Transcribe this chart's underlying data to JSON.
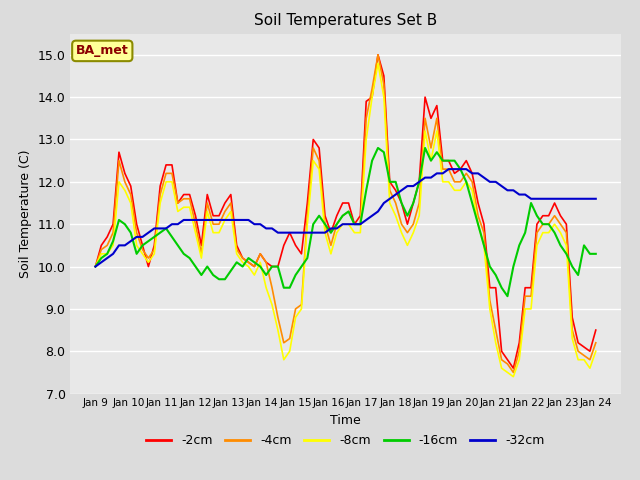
{
  "title": "Soil Temperatures Set B",
  "xlabel": "Time",
  "ylabel": "Soil Temperature (C)",
  "ylim": [
    7.0,
    15.5
  ],
  "yticks": [
    7.0,
    8.0,
    9.0,
    10.0,
    11.0,
    12.0,
    13.0,
    14.0,
    15.0
  ],
  "xtick_labels": [
    "Jan 9",
    "Jan 10",
    "Jan 11",
    "Jan 12",
    "Jan 13",
    "Jan 14",
    "Jan 15",
    "Jan 16",
    "Jan 17",
    "Jan 18",
    "Jan 19",
    "Jan 20",
    "Jan 21",
    "Jan 22",
    "Jan 23",
    "Jan 24"
  ],
  "annotation_text": "BA_met",
  "annotation_color": "#8B0000",
  "annotation_bg": "#FFFF99",
  "fig_bg_color": "#DCDCDC",
  "plot_bg_color": "#E8E8E8",
  "series": {
    "m2cm": {
      "label": "-2cm",
      "color": "#FF0000",
      "linewidth": 1.2,
      "values": [
        10.0,
        10.5,
        10.7,
        11.0,
        12.7,
        12.2,
        11.9,
        11.0,
        10.5,
        10.0,
        10.5,
        11.9,
        12.4,
        12.4,
        11.5,
        11.7,
        11.7,
        11.2,
        10.5,
        11.7,
        11.2,
        11.2,
        11.5,
        11.7,
        10.5,
        10.2,
        10.1,
        10.0,
        10.3,
        10.1,
        10.0,
        10.0,
        10.5,
        10.8,
        10.5,
        10.3,
        11.5,
        13.0,
        12.8,
        11.2,
        10.8,
        11.2,
        11.5,
        11.5,
        11.0,
        11.2,
        13.9,
        14.0,
        15.0,
        14.5,
        12.0,
        11.8,
        11.5,
        11.0,
        11.5,
        12.0,
        14.0,
        13.5,
        13.8,
        12.5,
        12.5,
        12.2,
        12.3,
        12.5,
        12.2,
        11.5,
        11.0,
        9.5,
        9.5,
        8.0,
        7.8,
        7.6,
        8.2,
        9.5,
        9.5,
        11.0,
        11.2,
        11.2,
        11.5,
        11.2,
        11.0,
        8.8,
        8.2,
        8.1,
        8.0,
        8.5
      ]
    },
    "m4cm": {
      "label": "-4cm",
      "color": "#FF8C00",
      "linewidth": 1.2,
      "values": [
        10.0,
        10.4,
        10.5,
        10.8,
        12.5,
        12.0,
        11.7,
        10.8,
        10.4,
        10.2,
        10.4,
        11.7,
        12.2,
        12.2,
        11.5,
        11.6,
        11.6,
        11.0,
        10.3,
        11.5,
        11.0,
        11.0,
        11.3,
        11.5,
        10.4,
        10.2,
        10.1,
        10.0,
        10.3,
        10.1,
        9.5,
        8.8,
        8.2,
        8.3,
        9.0,
        9.1,
        11.2,
        12.8,
        12.5,
        11.0,
        10.5,
        11.0,
        11.2,
        11.3,
        11.0,
        11.0,
        13.5,
        14.2,
        15.0,
        14.3,
        11.8,
        11.5,
        11.0,
        10.8,
        11.0,
        11.5,
        13.5,
        12.8,
        13.5,
        12.3,
        12.3,
        12.0,
        12.0,
        12.2,
        12.0,
        11.2,
        10.8,
        9.2,
        8.5,
        7.8,
        7.7,
        7.5,
        8.0,
        9.3,
        9.3,
        10.8,
        11.0,
        11.0,
        11.2,
        11.0,
        10.8,
        8.5,
        8.0,
        7.9,
        7.8,
        8.2
      ]
    },
    "m8cm": {
      "label": "-8cm",
      "color": "#FFFF00",
      "linewidth": 1.2,
      "values": [
        10.0,
        10.3,
        10.3,
        10.5,
        12.0,
        11.8,
        11.5,
        10.5,
        10.3,
        10.1,
        10.3,
        11.5,
        12.0,
        12.0,
        11.3,
        11.4,
        11.4,
        10.8,
        10.2,
        11.3,
        10.8,
        10.8,
        11.1,
        11.3,
        10.3,
        10.1,
        10.0,
        9.8,
        10.1,
        9.5,
        9.1,
        8.5,
        7.8,
        8.0,
        8.8,
        9.0,
        11.0,
        12.5,
        12.3,
        10.8,
        10.3,
        10.8,
        11.0,
        11.0,
        10.8,
        10.8,
        13.0,
        14.0,
        14.8,
        14.0,
        11.5,
        11.2,
        10.8,
        10.5,
        10.8,
        11.2,
        13.2,
        12.5,
        13.2,
        12.0,
        12.0,
        11.8,
        11.8,
        12.0,
        11.8,
        11.0,
        10.5,
        9.0,
        8.2,
        7.6,
        7.5,
        7.4,
        7.8,
        9.0,
        9.0,
        10.5,
        10.8,
        10.8,
        11.0,
        10.8,
        10.5,
        8.3,
        7.8,
        7.8,
        7.6,
        8.0
      ]
    },
    "m16cm": {
      "label": "-16cm",
      "color": "#00CC00",
      "linewidth": 1.5,
      "values": [
        10.0,
        10.2,
        10.3,
        10.6,
        11.1,
        11.0,
        10.8,
        10.3,
        10.5,
        10.6,
        10.7,
        10.8,
        10.9,
        10.7,
        10.5,
        10.3,
        10.2,
        10.0,
        9.8,
        10.0,
        9.8,
        9.7,
        9.7,
        9.9,
        10.1,
        10.0,
        10.2,
        10.1,
        10.0,
        9.8,
        10.0,
        10.0,
        9.5,
        9.5,
        9.8,
        10.0,
        10.2,
        11.0,
        11.2,
        11.0,
        10.8,
        11.0,
        11.2,
        11.3,
        11.0,
        11.0,
        11.8,
        12.5,
        12.8,
        12.7,
        12.0,
        12.0,
        11.5,
        11.2,
        11.5,
        12.0,
        12.8,
        12.5,
        12.7,
        12.5,
        12.5,
        12.5,
        12.3,
        12.0,
        11.5,
        11.0,
        10.5,
        10.0,
        9.8,
        9.5,
        9.3,
        10.0,
        10.5,
        10.8,
        11.5,
        11.2,
        11.0,
        11.0,
        10.8,
        10.5,
        10.3,
        10.0,
        9.8,
        10.5,
        10.3,
        10.3
      ]
    },
    "m32cm": {
      "label": "-32cm",
      "color": "#0000CC",
      "linewidth": 1.5,
      "values": [
        10.0,
        10.1,
        10.2,
        10.3,
        10.5,
        10.5,
        10.6,
        10.7,
        10.7,
        10.8,
        10.9,
        10.9,
        10.9,
        11.0,
        11.0,
        11.1,
        11.1,
        11.1,
        11.1,
        11.1,
        11.1,
        11.1,
        11.1,
        11.1,
        11.1,
        11.1,
        11.1,
        11.0,
        11.0,
        10.9,
        10.9,
        10.8,
        10.8,
        10.8,
        10.8,
        10.8,
        10.8,
        10.8,
        10.8,
        10.8,
        10.9,
        10.9,
        11.0,
        11.0,
        11.0,
        11.0,
        11.1,
        11.2,
        11.3,
        11.5,
        11.6,
        11.7,
        11.8,
        11.9,
        11.9,
        12.0,
        12.1,
        12.1,
        12.2,
        12.2,
        12.3,
        12.3,
        12.3,
        12.3,
        12.2,
        12.2,
        12.1,
        12.0,
        12.0,
        11.9,
        11.8,
        11.8,
        11.7,
        11.7,
        11.6,
        11.6,
        11.6,
        11.6,
        11.6,
        11.6,
        11.6,
        11.6,
        11.6,
        11.6,
        11.6,
        11.6
      ]
    }
  }
}
